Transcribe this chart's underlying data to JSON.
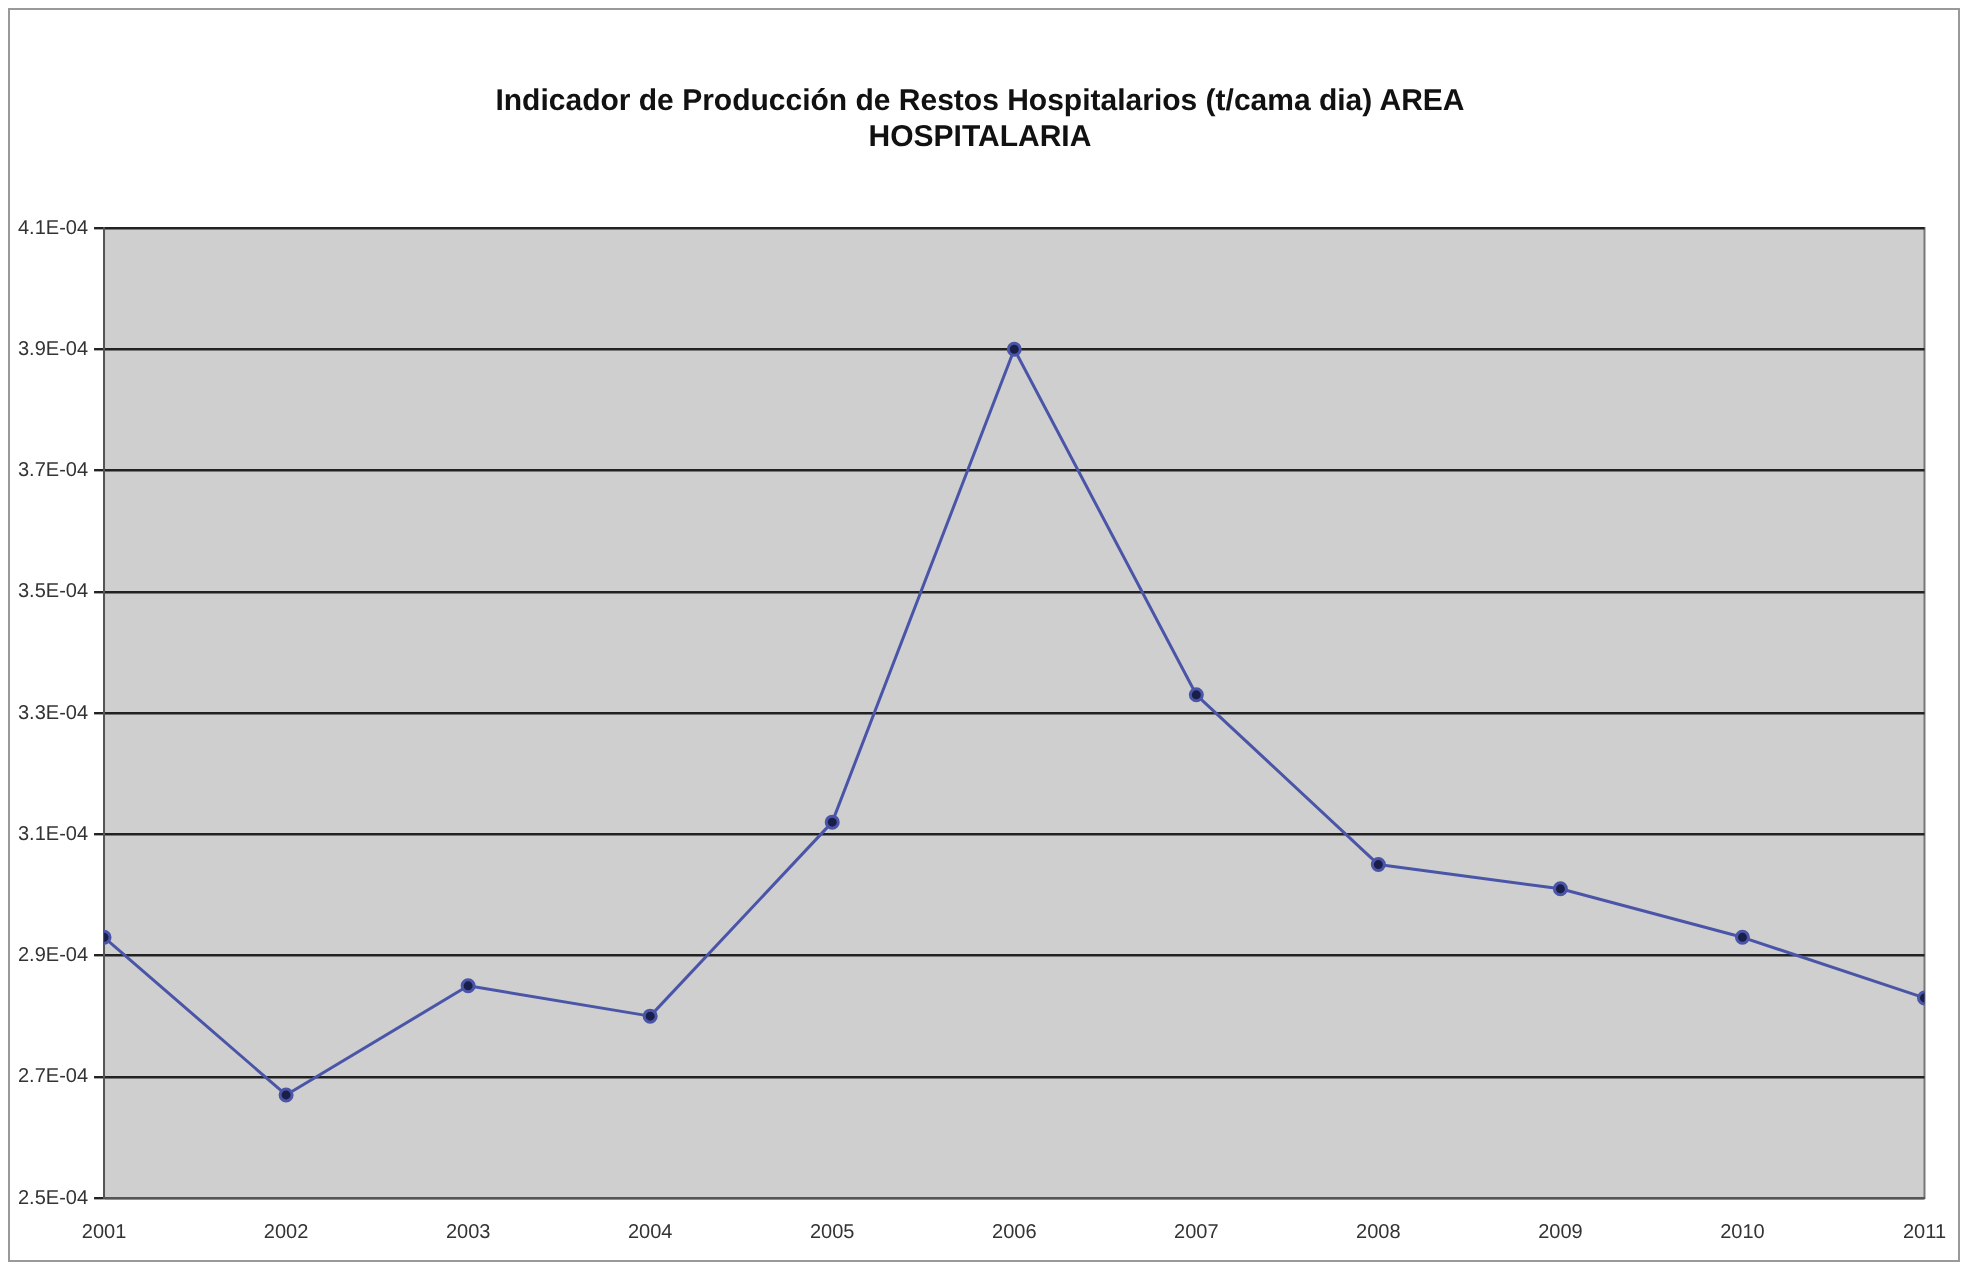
{
  "chart_data": {
    "type": "line",
    "title": "Indicador de Producción de Restos Hospitalarios (t/cama dia) AREA HOSPITALARIA",
    "x": [
      2001,
      2002,
      2003,
      2004,
      2005,
      2006,
      2007,
      2008,
      2009,
      2010,
      2011
    ],
    "series": [
      {
        "color": "#4a55a8",
        "values": [
          0.000293,
          0.000267,
          0.000285,
          0.00028,
          0.000312,
          0.00039,
          0.000333,
          0.000305,
          0.000301,
          0.000293,
          0.000283
        ]
      }
    ],
    "xlim": [
      2001,
      2011
    ],
    "xticks": [
      2001,
      2002,
      2003,
      2004,
      2005,
      2006,
      2007,
      2008,
      2009,
      2010,
      2011
    ],
    "ylim": [
      0.00025,
      0.00041
    ],
    "yticks": [
      {
        "value": 0.00025,
        "label": "2.5E-04"
      },
      {
        "value": 0.00027,
        "label": "2.7E-04"
      },
      {
        "value": 0.00029,
        "label": "2.9E-04"
      },
      {
        "value": 0.00031,
        "label": "3.1E-04"
      },
      {
        "value": 0.00033,
        "label": "3.3E-04"
      },
      {
        "value": 0.00035,
        "label": "3.5E-04"
      },
      {
        "value": 0.00037,
        "label": "3.7E-04"
      },
      {
        "value": 0.00039,
        "label": "3.9E-04"
      },
      {
        "value": 0.00041,
        "label": "4.1E-04"
      }
    ],
    "grid": "y",
    "marker": "circle",
    "line_style": "solid"
  }
}
